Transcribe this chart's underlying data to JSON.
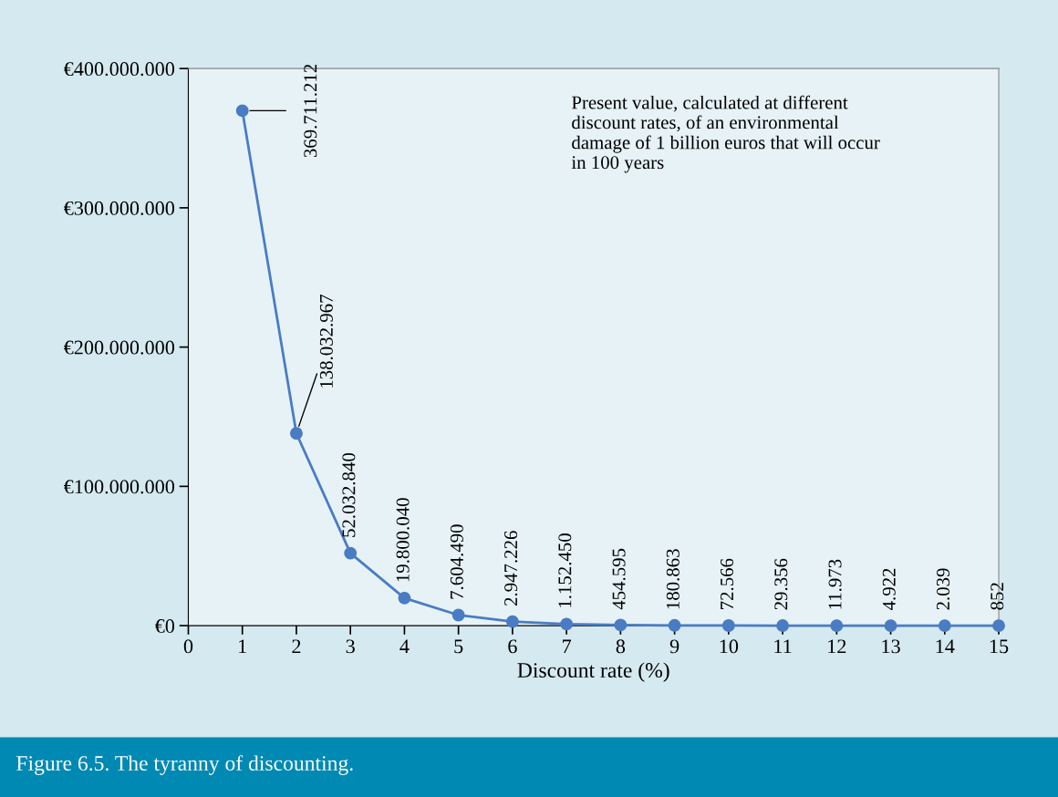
{
  "chart_data": {
    "type": "line",
    "xlabel": "Discount rate (%)",
    "x": [
      1,
      2,
      3,
      4,
      5,
      6,
      7,
      8,
      9,
      10,
      11,
      12,
      13,
      14,
      15
    ],
    "series": [
      {
        "color": "#4a7cc4",
        "values": [
          369711212,
          138032967,
          52032840,
          19800040,
          7604490,
          2947226,
          1152450,
          454595,
          180863,
          72566,
          29356,
          11973,
          4922,
          2039,
          852
        ],
        "value_labels": [
          "369.711.212",
          "138.032.967",
          "52.032.840",
          "19.800.040",
          "7.604.490",
          "2.947.226",
          "1.152.450",
          "454.595",
          "180.863",
          "72.566",
          "29.356",
          "11.973",
          "4.922",
          "2.039",
          "852"
        ]
      }
    ],
    "marker": "circle",
    "xlim": [
      0,
      15
    ],
    "xticks": [
      0,
      1,
      2,
      3,
      4,
      5,
      6,
      7,
      8,
      9,
      10,
      11,
      12,
      13,
      14,
      15
    ],
    "ylim": [
      0,
      400000000
    ],
    "yticks": [
      {
        "value": 0,
        "label": "€0"
      },
      {
        "value": 100000000,
        "label": "€100.000.000"
      },
      {
        "value": 200000000,
        "label": "€200.000.000"
      },
      {
        "value": 300000000,
        "label": "€300.000.000"
      },
      {
        "value": 400000000,
        "label": "€400.000.000"
      }
    ],
    "grid": false,
    "legend": false,
    "annotations": [
      "Present value, calculated at different discount rates, of an environmental damage of 1 billion euros that will occur in 100 years",
      "Figure 6.5. The tyranny of discounting."
    ]
  }
}
